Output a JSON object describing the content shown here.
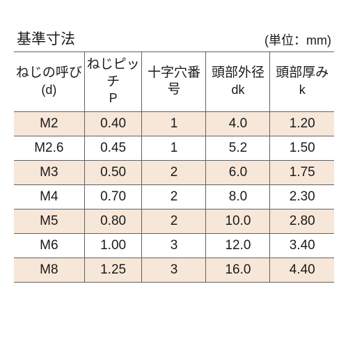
{
  "title": "基準寸法",
  "unit": "(単位：mm)",
  "colors": {
    "row_odd_bg": "#f7e7d9",
    "row_even_bg": "#ffffff",
    "border": "#606060",
    "text": "#1a1a1a",
    "page_bg": "#ffffff"
  },
  "typography": {
    "title_fontsize": 21,
    "unit_fontsize": 18,
    "header_fontsize": 19,
    "cell_fontsize": 19
  },
  "columns": [
    {
      "label_top": "ねじの呼び",
      "label_bottom": "(d)",
      "width_pct": 22
    },
    {
      "label_top": "ねじピッチ",
      "label_bottom": "P",
      "width_pct": 18
    },
    {
      "label_top": "十字穴番号",
      "label_bottom": "",
      "width_pct": 20
    },
    {
      "label_top": "頭部外径",
      "label_bottom": "dk",
      "width_pct": 20
    },
    {
      "label_top": "頭部厚み",
      "label_bottom": "k",
      "width_pct": 20
    }
  ],
  "rows": [
    [
      "M2",
      "0.40",
      "1",
      "4.0",
      "1.20"
    ],
    [
      "M2.6",
      "0.45",
      "1",
      "5.2",
      "1.50"
    ],
    [
      "M3",
      "0.50",
      "2",
      "6.0",
      "1.75"
    ],
    [
      "M4",
      "0.70",
      "2",
      "8.0",
      "2.30"
    ],
    [
      "M5",
      "0.80",
      "2",
      "10.0",
      "2.80"
    ],
    [
      "M6",
      "1.00",
      "3",
      "12.0",
      "3.40"
    ],
    [
      "M8",
      "1.25",
      "3",
      "16.0",
      "4.40"
    ]
  ]
}
